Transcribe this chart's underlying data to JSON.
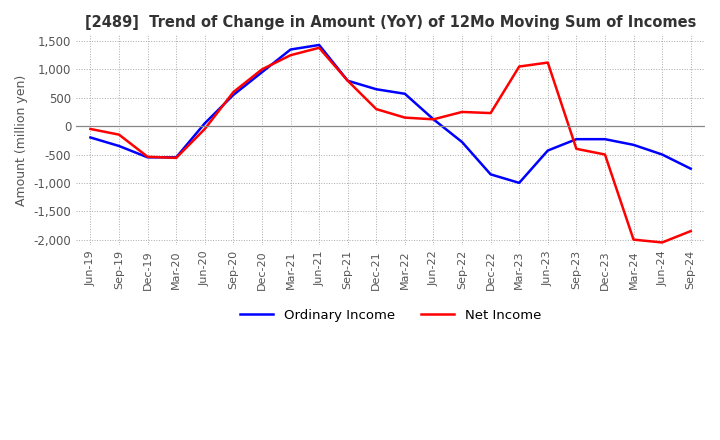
{
  "title": "[2489]  Trend of Change in Amount (YoY) of 12Mo Moving Sum of Incomes",
  "ylabel": "Amount (million yen)",
  "ylim": [
    -2100,
    1600
  ],
  "yticks": [
    -2000,
    -1500,
    -1000,
    -500,
    0,
    500,
    1000,
    1500
  ],
  "background_color": "#ffffff",
  "grid_color": "#aaaaaa",
  "ordinary_income_color": "#0000ff",
  "net_income_color": "#ff0000",
  "dates": [
    "Jun-19",
    "Sep-19",
    "Dec-19",
    "Mar-20",
    "Jun-20",
    "Sep-20",
    "Dec-20",
    "Mar-21",
    "Jun-21",
    "Sep-21",
    "Dec-21",
    "Mar-22",
    "Jun-22",
    "Sep-22",
    "Dec-22",
    "Mar-23",
    "Jun-23",
    "Sep-23",
    "Dec-23",
    "Mar-24",
    "Jun-24",
    "Sep-24"
  ],
  "ordinary_income": [
    -200,
    -350,
    -550,
    -550,
    50,
    550,
    950,
    1350,
    1430,
    800,
    650,
    570,
    120,
    -280,
    -850,
    -1000,
    -430,
    -230,
    -230,
    -330,
    -500,
    -750
  ],
  "net_income": [
    -50,
    -150,
    -540,
    -560,
    -50,
    600,
    1000,
    1250,
    1380,
    800,
    300,
    150,
    120,
    250,
    230,
    1050,
    1120,
    -400,
    -500,
    -2000,
    -2050,
    -1850
  ]
}
